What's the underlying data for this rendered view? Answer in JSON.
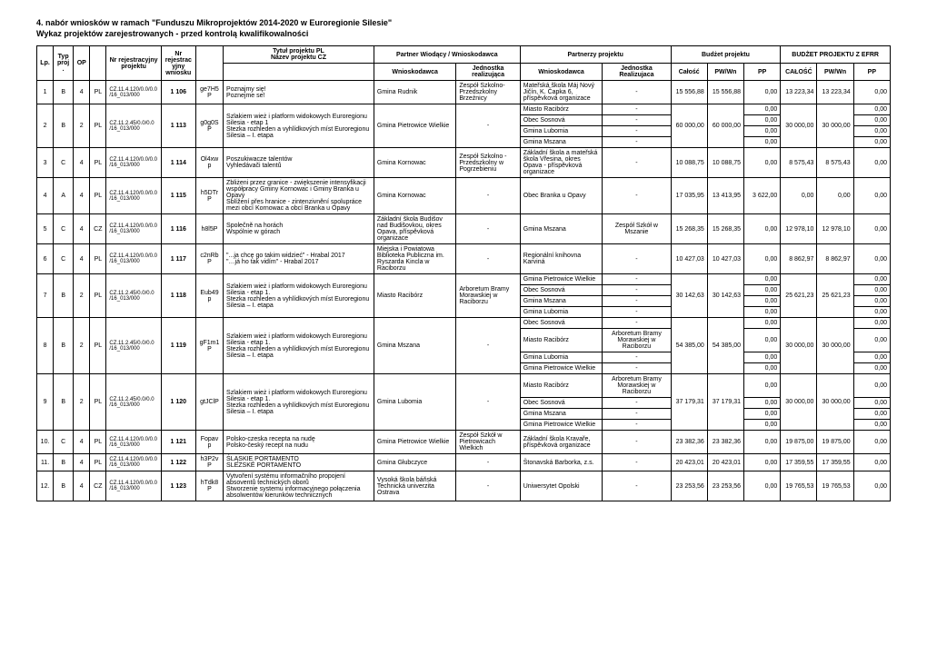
{
  "titles": {
    "line1": "4. nabór wniosków w ramach \"Funduszu Mikroprojektów 2014-2020 w Euroregionie Silesie\"",
    "line2": "Wykaz projektów zarejestrowanych - przed kontrolą kwalifikowalności"
  },
  "headers": {
    "lp": "Lp.",
    "typ": "Typ proj.",
    "op": "OP",
    "nr_reg_proj": "Nr rejestracyjny projektu",
    "nr_reg_wniosku": "Nr rejestracyjny wniosku",
    "tytul_pl": "Tytuł projektu PL",
    "nazev_cz": "Název projektu CZ",
    "partner_wiodacy": "Partner Wiodący / Wnioskodawca",
    "partnerzy": "Partnerzy projektu",
    "budzet": "Budżet projektu",
    "budzet_efrr": "BUDŻET PROJEKTU Z EFRR",
    "wnioskodawca": "Wnioskodawca",
    "jednostka": "Jednostka realizująca",
    "jednostka_r": "Jednostka Realizujaca",
    "calosc": "Całość",
    "pwwn": "PW/Wn",
    "pp": "PP",
    "calosc2": "CAŁOŚĆ",
    "pwwn2": "PW/Wn",
    "pp2": "PP"
  },
  "rows": [
    {
      "lp": "1",
      "typ": "B",
      "op": "4",
      "pl": "PL",
      "reg": "CZ.11.4.120/0.0/0.0/16_013/000",
      "nrreg": "1 106",
      "code": "ge7H5P",
      "title": "Poznajmy się!\nPoznejme se!",
      "wniosk": "Gmina Rudnik",
      "jedn": "Zespół Szkolno-Przedszkolny Brzeźnicy",
      "partners": [
        [
          "Mateřská škola Máj Nový Jičín, K. Čapka 6, příspěvková organizace",
          "-"
        ]
      ],
      "b": [
        "15 556,88",
        "15 556,88",
        "0,00",
        "13 223,34",
        "13 223,34",
        "0,00"
      ]
    },
    {
      "lp": "2",
      "typ": "B",
      "op": "2",
      "pl": "PL",
      "reg": "CZ.11.2.45/0.0/0.0/16_013/000",
      "nrreg": "1 113",
      "code": "g0g0SP",
      "title": "Szlakiem wież i platform widokowych Euroregionu Silesia - etap 1\nStezka rozhleden a vyhlídkových míst Euroregionu Silesia – I. etapa",
      "wniosk": "Gmina Pietrowice Wielkie",
      "jedn": "-",
      "partners": [
        [
          "Miasto Racibórz",
          "-"
        ],
        [
          "Obec Sosnová",
          "-"
        ],
        [
          "Gmina Lubomia",
          "-"
        ],
        [
          "Gmina Mszana",
          "-"
        ]
      ],
      "b": [
        "60 000,00",
        "60 000,00",
        "",
        "30 000,00",
        "30 000,00",
        ""
      ],
      "pp_rows": [
        "0,00",
        "0,00",
        "0,00",
        "0,00"
      ],
      "pp2_rows": [
        "0,00",
        "0,00",
        "0,00",
        "0,00"
      ]
    },
    {
      "lp": "3",
      "typ": "C",
      "op": "4",
      "pl": "PL",
      "reg": "CZ.11.4.120/0.0/0.0/16_013/000",
      "nrreg": "1 114",
      "code": "Ol4xwp",
      "title": "Poszukiwacze talentów\nVyhledávači talentů",
      "wniosk": "Gmina Kornowac",
      "jedn": "Zespół Szkolno - Przedszkolny w Pogrzebieniu",
      "partners": [
        [
          "Základní škola a mateřská škola Vřesina, okres Opava - příspěvková organizace",
          "-"
        ]
      ],
      "b": [
        "10 088,75",
        "10 088,75",
        "0,00",
        "8 575,43",
        "8 575,43",
        "0,00"
      ]
    },
    {
      "lp": "4",
      "typ": "A",
      "op": "4",
      "pl": "PL",
      "reg": "CZ.11.4.120/0.0/0.0/16_013/000",
      "nrreg": "1 115",
      "code": "h5DTrP",
      "title": "Zbliżeni przez granice - zwiększenie intensyfikacji współpracy Gminy Kornowac i Gminy Branka u Opavy\nSblížení přes hranice - zintenzivnění spolupráce mezi obcí Kornowac a obcí Branka u Opavy",
      "wniosk": "Gmina Kornowac",
      "jedn": "-",
      "partners": [
        [
          "Obec Branka u Opavy",
          "-"
        ]
      ],
      "b": [
        "17 035,95",
        "13 413,95",
        "3 622,00",
        "0,00",
        "0,00",
        "0,00"
      ]
    },
    {
      "lp": "5",
      "typ": "C",
      "op": "4",
      "pl": "CZ",
      "reg": "CZ.11.4.120/0.0/0.0/16_013/000",
      "nrreg": "1 116",
      "code": "h8l5P",
      "title": "Společně na horách\nWspólnie w górach",
      "wniosk": "Základní škola Budišov nad Budišovkou, okres Opava, příspěvková organizace",
      "jedn": "-",
      "partners": [
        [
          "Gmina Mszana",
          "Zespół Szkół w Mszanie"
        ]
      ],
      "b": [
        "15 268,35",
        "15 268,35",
        "0,00",
        "12 978,10",
        "12 978,10",
        "0,00"
      ]
    },
    {
      "lp": "6",
      "typ": "C",
      "op": "4",
      "pl": "PL",
      "reg": "CZ.11.4.120/0.0/0.0/16_013/000",
      "nrreg": "1 117",
      "code": "c2nRbP",
      "title": "\"...ja chcę go takim widzieć\" - Hrabal 2017\n\"…já ho tak vidím\" - Hrabal 2017",
      "wniosk": "Miejska i Powiatowa Biblioteka Publiczna im. Ryszarda Kincla w Raciborzu",
      "jedn": "-",
      "partners": [
        [
          "Regionální knihovna Karviná",
          "-"
        ]
      ],
      "b": [
        "10 427,03",
        "10 427,03",
        "0,00",
        "8 862,97",
        "8 862,97",
        "0,00"
      ]
    },
    {
      "lp": "7",
      "typ": "B",
      "op": "2",
      "pl": "PL",
      "reg": "CZ.11.2.45/0.0/0.0/16_013/000",
      "nrreg": "1 118",
      "code": "Eub49p",
      "title": "Szlakiem wież i platform widokowych Euroregionu Silesia - etap 1.\nStezka rozhleden a vyhlídkových míst Euroregionu Silesia – I. etapa",
      "wniosk": "Miasto Racibórz",
      "jedn": "Arboretum Bramy Morawskiej w Raciborzu",
      "partners": [
        [
          "Gmina Pietrowice Wielkie",
          "-"
        ],
        [
          "Obec Sosnová",
          "-"
        ],
        [
          "Gmina Mszana",
          "-"
        ],
        [
          "Gmina Lubomia",
          "-"
        ]
      ],
      "b": [
        "30 142,63",
        "30 142,63",
        "",
        "25 621,23",
        "25 621,23",
        ""
      ],
      "pp_rows": [
        "0,00",
        "0,00",
        "0,00",
        "0,00"
      ],
      "pp2_rows": [
        "0,00",
        "0,00",
        "0,00",
        "0,00"
      ]
    },
    {
      "lp": "8",
      "typ": "B",
      "op": "2",
      "pl": "PL",
      "reg": "CZ.11.2.45/0.0/0.0/16_013/000",
      "nrreg": "1 119",
      "code": "gF1m1P",
      "title": "Szlakiem wież i platform widokowych Euroregionu Silesia - etap 1.\nStezka rozhleden a vyhlídkových míst Euroregionu Silesia – I. etapa",
      "wniosk": "Gmina Mszana",
      "jedn": "-",
      "partners": [
        [
          "Obec Sosnová",
          "-"
        ],
        [
          "Miasto Racibórz",
          "Arboretum Bramy Morawskiej w Raciborzu"
        ],
        [
          "Gmina Lubomia",
          "-"
        ],
        [
          "Gmina Pietrowice Wielkie",
          "-"
        ]
      ],
      "b": [
        "54 385,00",
        "54 385,00",
        "",
        "30 000,00",
        "30 000,00",
        ""
      ],
      "pp_rows": [
        "0,00",
        "0,00",
        "0,00",
        "0,00"
      ],
      "pp2_rows": [
        "0,00",
        "0,00",
        "0,00",
        "0,00"
      ]
    },
    {
      "lp": "9",
      "typ": "B",
      "op": "2",
      "pl": "PL",
      "reg": "CZ.11.2.45/0.0/0.0/16_013/000",
      "nrreg": "1 120",
      "code": "gtJClP",
      "title": "Szlakiem wież i platform widokowych Euroregionu Silesia - etap 1.\nStezka rozhleden a vyhlídkových míst Euroregionu Silesia – I. etapa",
      "wniosk": "Gmina Lubomia",
      "jedn": "-",
      "partners": [
        [
          "Miasto Racibórz",
          "Arboretum Bramy Morawskiej w Raciborzu"
        ],
        [
          "Obec Sosnová",
          "-"
        ],
        [
          "Gmina Mszana",
          "-"
        ],
        [
          "Gmina Pietrowice Wielkie",
          "-"
        ]
      ],
      "b": [
        "37 179,31",
        "37 179,31",
        "",
        "30 000,00",
        "30 000,00",
        ""
      ],
      "pp_rows": [
        "0,00",
        "0,00",
        "0,00",
        "0,00"
      ],
      "pp2_rows": [
        "0,00",
        "0,00",
        "0,00",
        "0,00"
      ]
    },
    {
      "lp": "10.",
      "typ": "C",
      "op": "4",
      "pl": "PL",
      "reg": "CZ.11.4.120/0.0/0.0/16_013/000",
      "nrreg": "1 121",
      "code": "Fopavp",
      "title": "Polsko-czeska recepta na nudę\nPolsko-český recept na nudu",
      "wniosk": "Gmina Pietrowice Wielkie",
      "jedn": "Zespół Szkół w Pietrowicach Wielkich",
      "partners": [
        [
          "Základní škola Kravaře, příspěvková organizace",
          "-"
        ]
      ],
      "b": [
        "23 382,36",
        "23 382,36",
        "0,00",
        "19 875,00",
        "19 875,00",
        "0,00"
      ]
    },
    {
      "lp": "11.",
      "typ": "B",
      "op": "4",
      "pl": "PL",
      "reg": "CZ.11.4.120/0.0/0.0/16_013/000",
      "nrreg": "1 122",
      "code": "h3P2vP",
      "title": "ŚLĄSKIE PORTAMENTO\nSLEZSKÉ PORTAMENTO",
      "wniosk": "Gmina Głubczyce",
      "jedn": "-",
      "partners": [
        [
          "Štonavská Barborka, z.s.",
          "-"
        ]
      ],
      "b": [
        "20 423,01",
        "20 423,01",
        "0,00",
        "17 359,55",
        "17 359,55",
        "0,00"
      ]
    },
    {
      "lp": "12.",
      "typ": "B",
      "op": "4",
      "pl": "CZ",
      "reg": "CZ.11.4.120/0.0/0.0/16_013/000",
      "nrreg": "1 123",
      "code": "hTdk8P",
      "title": "Vytvoření systému informačního propojení absoventů technických oborů\nStworzenie systemu informacyjnego połączenia absolwentów kierunków technicznych",
      "wniosk": "Vysoká škola báňská Technická univerzita Ostrava",
      "jedn": "-",
      "partners": [
        [
          "Uniwersytet Opolski",
          "-"
        ]
      ],
      "b": [
        "23 253,56",
        "23 253,56",
        "0,00",
        "19 765,53",
        "19 765,53",
        "0,00"
      ]
    }
  ]
}
